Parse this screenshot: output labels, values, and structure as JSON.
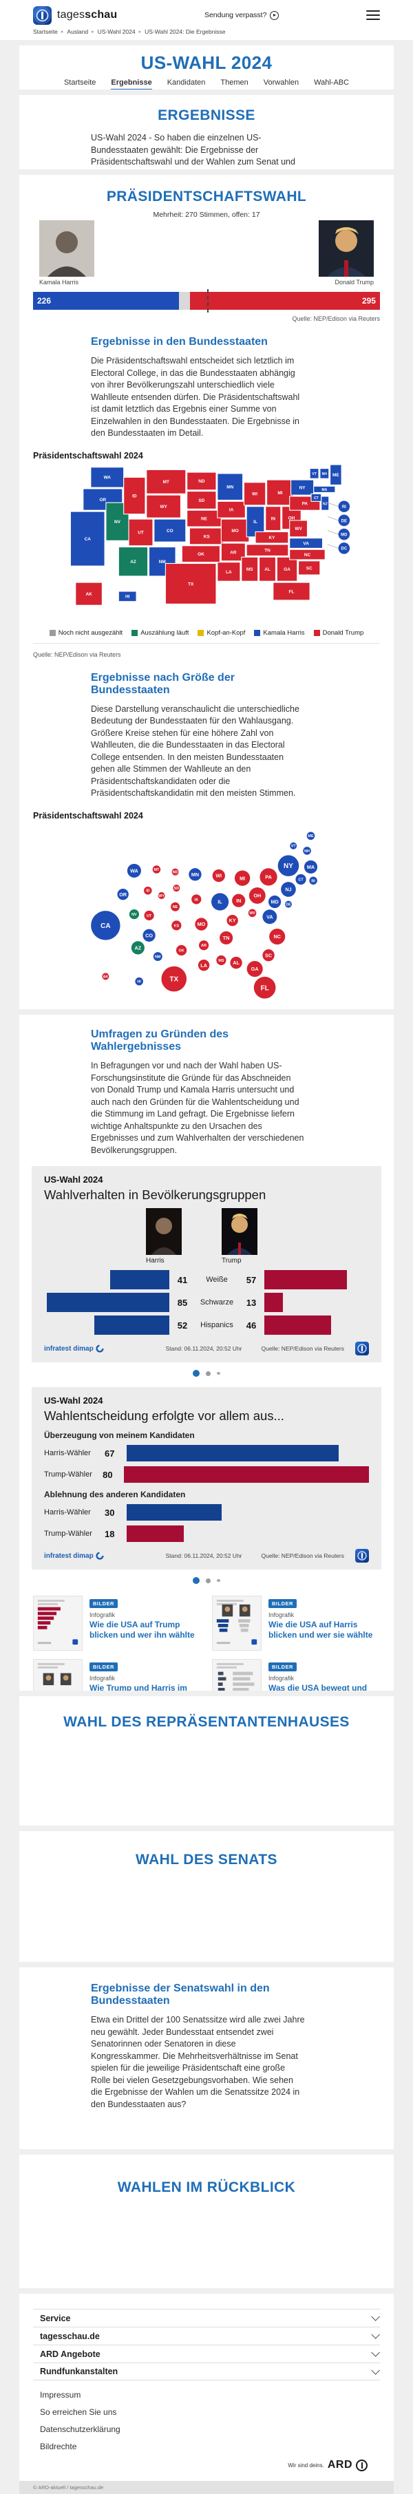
{
  "colors": {
    "harris_blue": "#1e4db7",
    "trump_red": "#d62330",
    "counting_green": "#157f60",
    "tossup_yellow": "#e0bb00",
    "open_gray": "#9b9b9b",
    "bar_blue": "#14418f",
    "bar_red": "#a50d34",
    "heading_blue": "#1f6eb7"
  },
  "header": {
    "brand_light": "tages",
    "brand_bold": "schau",
    "missed": "Sendung verpasst?",
    "breadcrumb": [
      "Startseite",
      "Ausland",
      "US-Wahl 2024",
      "US-Wahl 2024: Die Ergebnisse"
    ]
  },
  "hub": {
    "title": "US-WAHL 2024",
    "tabs": [
      {
        "label": "Startseite",
        "active": false
      },
      {
        "label": "Ergebnisse",
        "active": true
      },
      {
        "label": "Kandidaten",
        "active": false
      },
      {
        "label": "Themen",
        "active": false
      },
      {
        "label": "Vorwahlen",
        "active": false
      },
      {
        "label": "Wahl-ABC",
        "active": false
      }
    ]
  },
  "intro": {
    "title": "ERGEBNISSE",
    "text": "US-Wahl 2024 - So haben die einzelnen US-Bundesstaaten gewählt: Die Ergebnisse der Präsidentschaftswahl und der Wahlen zum Senat und Repräsentantenhaus in interaktiven Grafiken."
  },
  "president": {
    "title": "PRÄSIDENTSCHAFTSWAHL",
    "majority_note": "Mehrheit: 270 Stimmen, offen: 17",
    "harris_name": "Kamala Harris",
    "trump_name": "Donald Trump",
    "source": "Quelle: NEP/Edison via Reuters",
    "states_section": {
      "title": "Ergebnisse in den Bundesstaaten",
      "text": "Die Präsidentschaftswahl entscheidet sich letztlich im Electoral College, in das die Bundesstaaten abhängig von ihrer Bevölkerungszahl unterschiedlich viele Wahlleute entsenden dürfen. Die Präsidentschaftswahl ist damit letztlich das Ergebnis einer Summe von Einzelwahlen in den Bundesstaaten. Die Ergebnisse in den Bundesstaaten im Detail.",
      "chart_label": "Präsidentschaftswahl 2024"
    },
    "size_section": {
      "title": "Ergebnisse nach Größe der Bundesstaaten",
      "text": "Diese Darstellung veranschaulicht die unterschiedliche Bedeutung der Bundesstaaten für den Wahlausgang. Größere Kreise stehen für eine höhere Zahl von Wahlleuten, die die Bundesstaaten in das Electoral College entsenden. In den meisten Bundesstaaten gehen alle Stimmen der Wahlleute an den Präsidentschaftskandidaten oder die Präsidentschaftskandidatin mit den meisten Stimmen.",
      "chart_label": "Präsidentschaftswahl 2024"
    }
  },
  "surveys": {
    "title": "Umfragen zu Gründen des Wahlergebnisses",
    "text": "In Befragungen vor und nach der Wahl haben US-Forschungsinstitute die Gründe für das Abschneiden von Donald Trump und Kamala Harris untersucht und auch nach den Gründen für die Wahlentscheidung und die Stimmung im Land gefragt. Die Ergebnisse liefern wichtige Anhaltspunkte zu den Ursachen des Ergebnisses und zum Wahlverhalten der verschiedenen Bevölkerungsgruppen.",
    "provider": "infratest dimap",
    "stand": "Stand:  06.11.2024, 20:52 Uhr",
    "source": "Quelle: NEP/Edison via Reuters",
    "box1": {
      "kicker": "US-Wahl 2024",
      "title": "Wahlverhalten in Bevölkerungsgruppen",
      "harris_cap": "Harris",
      "trump_cap": "Trump"
    },
    "box2": {
      "kicker": "US-Wahl 2024",
      "title": "Wahlentscheidung erfolgte vor allem aus..."
    }
  },
  "teasers": [
    {
      "badge": "BILDER",
      "kicker": "Infografik",
      "title": "Wie die USA auf Trump blicken und wer ihn wählte",
      "variant": 1
    },
    {
      "badge": "BILDER",
      "kicker": "Infografik",
      "title": "Wie die USA auf Harris blicken und wer sie wählte",
      "variant": 2
    },
    {
      "badge": "BILDER",
      "kicker": "Infografik",
      "title": "Wie Trump und Harris im Vergleich bewertet werden",
      "variant": 3
    },
    {
      "badge": "BILDER",
      "kicker": "Infografik",
      "title": "Was die USA bewegt und die Stimmung prägt",
      "variant": 4
    }
  ],
  "house": {
    "title": "WAHL DES REPRÄSENTANTENHAUSES"
  },
  "senate": {
    "title": "WAHL DES SENATS"
  },
  "senate_results": {
    "title": "Ergebnisse der Senatswahl in den Bundesstaaten",
    "text": "Etwa ein Drittel der 100 Senatssitze wird alle zwei Jahre neu gewählt. Jeder Bundesstaat entsendet zwei Senatorinnen oder Senatoren in diese Kongresskammer. Die Mehrheitsverhältnisse im Senat spielen für die jeweilige Präsidentschaft eine große Rolle bei vielen Gesetzgebungsvorhaben. Wie sehen die Ergebnisse der Wahlen um die Senatssitze 2024 in den Bundesstaaten aus?"
  },
  "review": {
    "title": "WAHLEN IM RÜCKBLICK"
  },
  "footer": {
    "accordions": [
      "Service",
      "tagesschau.de",
      "ARD Angebote",
      "Rundfunkanstalten"
    ],
    "links": [
      "Impressum",
      "So erreichen Sie uns",
      "Datenschutzerklärung",
      "Bildrechte"
    ],
    "brand_claim": "Wir sind deins.",
    "brand": "ARD",
    "copyright": "© ARD-aktuell / tagesschau.de"
  },
  "chart_data": [
    {
      "type": "bar",
      "name": "electoral_college",
      "title": "Präsidentschaftswahl",
      "series": [
        {
          "name": "Kamala Harris",
          "value": 226,
          "color": "#1e4db7"
        },
        {
          "name": "Donald Trump",
          "value": 295,
          "color": "#d62330"
        }
      ],
      "open": 17,
      "majority": 270,
      "total": 538
    },
    {
      "type": "map",
      "name": "results_by_state",
      "title": "Präsidentschaftswahl 2024",
      "legend": [
        {
          "label": "Noch nicht ausgezählt",
          "color": "#9b9b9b"
        },
        {
          "label": "Auszählung läuft",
          "color": "#157f60"
        },
        {
          "label": "Kopf-an-Kopf",
          "color": "#e0bb00"
        },
        {
          "label": "Kamala Harris",
          "color": "#1e4db7"
        },
        {
          "label": "Donald Trump",
          "color": "#d62330"
        }
      ],
      "states": [
        {
          "abbr": "WA",
          "ev": 12,
          "result": "harris"
        },
        {
          "abbr": "OR",
          "ev": 8,
          "result": "harris"
        },
        {
          "abbr": "CA",
          "ev": 54,
          "result": "harris"
        },
        {
          "abbr": "NV",
          "ev": 6,
          "result": "counting"
        },
        {
          "abbr": "ID",
          "ev": 4,
          "result": "trump"
        },
        {
          "abbr": "MT",
          "ev": 4,
          "result": "trump"
        },
        {
          "abbr": "WY",
          "ev": 3,
          "result": "trump"
        },
        {
          "abbr": "UT",
          "ev": 6,
          "result": "trump"
        },
        {
          "abbr": "AZ",
          "ev": 11,
          "result": "counting"
        },
        {
          "abbr": "CO",
          "ev": 10,
          "result": "harris"
        },
        {
          "abbr": "NM",
          "ev": 5,
          "result": "harris"
        },
        {
          "abbr": "ND",
          "ev": 3,
          "result": "trump"
        },
        {
          "abbr": "SD",
          "ev": 3,
          "result": "trump"
        },
        {
          "abbr": "NE",
          "ev": 5,
          "result": "trump"
        },
        {
          "abbr": "KS",
          "ev": 6,
          "result": "trump"
        },
        {
          "abbr": "OK",
          "ev": 7,
          "result": "trump"
        },
        {
          "abbr": "TX",
          "ev": 40,
          "result": "trump"
        },
        {
          "abbr": "MN",
          "ev": 10,
          "result": "harris"
        },
        {
          "abbr": "IA",
          "ev": 6,
          "result": "trump"
        },
        {
          "abbr": "MO",
          "ev": 10,
          "result": "trump"
        },
        {
          "abbr": "AR",
          "ev": 6,
          "result": "trump"
        },
        {
          "abbr": "LA",
          "ev": 8,
          "result": "trump"
        },
        {
          "abbr": "WI",
          "ev": 10,
          "result": "trump"
        },
        {
          "abbr": "IL",
          "ev": 19,
          "result": "harris"
        },
        {
          "abbr": "MS",
          "ev": 6,
          "result": "trump"
        },
        {
          "abbr": "AL",
          "ev": 9,
          "result": "trump"
        },
        {
          "abbr": "GA",
          "ev": 16,
          "result": "trump"
        },
        {
          "abbr": "TN",
          "ev": 11,
          "result": "trump"
        },
        {
          "abbr": "KY",
          "ev": 8,
          "result": "trump"
        },
        {
          "abbr": "IN",
          "ev": 11,
          "result": "trump"
        },
        {
          "abbr": "OH",
          "ev": 17,
          "result": "trump"
        },
        {
          "abbr": "MI",
          "ev": 15,
          "result": "trump"
        },
        {
          "abbr": "WV",
          "ev": 4,
          "result": "trump"
        },
        {
          "abbr": "PA",
          "ev": 19,
          "result": "trump"
        },
        {
          "abbr": "NY",
          "ev": 28,
          "result": "harris"
        },
        {
          "abbr": "VA",
          "ev": 13,
          "result": "harris"
        },
        {
          "abbr": "NC",
          "ev": 16,
          "result": "trump"
        },
        {
          "abbr": "SC",
          "ev": 9,
          "result": "trump"
        },
        {
          "abbr": "FL",
          "ev": 30,
          "result": "trump"
        },
        {
          "abbr": "VT",
          "ev": 3,
          "result": "harris"
        },
        {
          "abbr": "NH",
          "ev": 4,
          "result": "harris"
        },
        {
          "abbr": "ME",
          "ev": 4,
          "result": "harris"
        },
        {
          "abbr": "MA",
          "ev": 11,
          "result": "harris"
        },
        {
          "abbr": "CT",
          "ev": 7,
          "result": "harris"
        },
        {
          "abbr": "NJ",
          "ev": 14,
          "result": "harris"
        },
        {
          "abbr": "AK",
          "ev": 3,
          "result": "trump"
        },
        {
          "abbr": "HI",
          "ev": 4,
          "result": "harris"
        },
        {
          "abbr": "RI",
          "ev": 4,
          "result": "harris"
        },
        {
          "abbr": "DE",
          "ev": 3,
          "result": "harris"
        },
        {
          "abbr": "MD",
          "ev": 10,
          "result": "harris"
        },
        {
          "abbr": "DC",
          "ev": 3,
          "result": "harris"
        }
      ]
    },
    {
      "type": "bubble",
      "name": "results_by_state_size",
      "title": "Präsidentschaftswahl 2024",
      "sizing": "electoral_votes",
      "states_source": "results_by_state"
    },
    {
      "type": "bar",
      "name": "demographics",
      "title": "Wahlverhalten in Bevölkerungsgruppen",
      "categories": [
        "Weiße",
        "Schwarze",
        "Hispanics"
      ],
      "series": [
        {
          "name": "Harris",
          "values": [
            41,
            85,
            52
          ],
          "color": "#14418f"
        },
        {
          "name": "Trump",
          "values": [
            57,
            13,
            46
          ],
          "color": "#a50d34"
        }
      ]
    },
    {
      "type": "bar",
      "name": "motivation",
      "title": "Wahlentscheidung erfolgte vor allem aus...",
      "groups": [
        {
          "label": "Überzeugung von meinem Kandidaten",
          "rows": [
            {
              "label": "Harris-Wähler",
              "value": 67,
              "color": "blue"
            },
            {
              "label": "Trump-Wähler",
              "value": 80,
              "color": "red"
            }
          ]
        },
        {
          "label": "Ablehnung des anderen Kandidaten",
          "rows": [
            {
              "label": "Harris-Wähler",
              "value": 30,
              "color": "blue"
            },
            {
              "label": "Trump-Wähler",
              "value": 18,
              "color": "red"
            }
          ]
        }
      ]
    }
  ]
}
